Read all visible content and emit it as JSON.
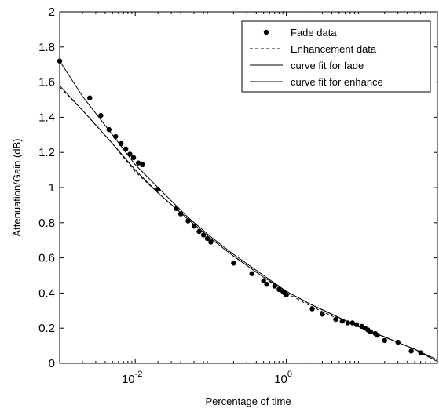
{
  "chart_data": {
    "type": "line",
    "xscale": "log",
    "xlim": [
      0.001,
      100
    ],
    "ylim": [
      0,
      2
    ],
    "xlabel": "Percentage of time",
    "ylabel": "Attenuation/Gain (dB)",
    "xticks": [
      {
        "value": 0.01,
        "base": "10",
        "exp": "-2"
      },
      {
        "value": 1,
        "base": "10",
        "exp": "0"
      }
    ],
    "yticks": [
      0,
      0.2,
      0.4,
      0.6,
      0.8,
      1,
      1.2,
      1.4,
      1.6,
      1.8,
      2
    ],
    "ytick_labels": [
      "0",
      "0.2",
      "0.4",
      "0.6",
      "0.8",
      "1",
      "1.2",
      "1.4",
      "1.6",
      "1.8",
      "2"
    ],
    "grid": false,
    "legend_position": "top-right",
    "series": [
      {
        "name": "Fade data",
        "style": "markers",
        "x": [
          0.001,
          0.0025,
          0.0035,
          0.0045,
          0.0055,
          0.0065,
          0.0075,
          0.0085,
          0.0095,
          0.011,
          0.0125,
          0.02,
          0.035,
          0.04,
          0.05,
          0.06,
          0.07,
          0.08,
          0.09,
          0.1,
          0.2,
          0.35,
          0.5,
          0.55,
          0.7,
          0.8,
          0.9,
          0.95,
          1.0,
          2.2,
          3.0,
          4.5,
          5.5,
          6.5,
          7.5,
          8.5,
          10,
          11,
          12,
          13,
          15,
          16,
          20,
          30,
          45,
          60
        ],
        "y": [
          1.72,
          1.51,
          1.41,
          1.33,
          1.29,
          1.25,
          1.22,
          1.19,
          1.17,
          1.14,
          1.13,
          0.99,
          0.88,
          0.85,
          0.81,
          0.78,
          0.75,
          0.73,
          0.71,
          0.69,
          0.57,
          0.51,
          0.47,
          0.45,
          0.44,
          0.42,
          0.41,
          0.4,
          0.39,
          0.31,
          0.28,
          0.25,
          0.24,
          0.23,
          0.23,
          0.22,
          0.21,
          0.2,
          0.19,
          0.18,
          0.17,
          0.16,
          0.13,
          0.12,
          0.07,
          0.06
        ]
      },
      {
        "name": "Enhancement data",
        "style": "dashed",
        "x": [
          0.001,
          0.002,
          0.005,
          0.01,
          0.02,
          0.05,
          0.1,
          0.2,
          0.5,
          1,
          2,
          5,
          10,
          20,
          50,
          100
        ],
        "y": [
          1.57,
          1.44,
          1.25,
          1.09,
          0.97,
          0.82,
          0.71,
          0.61,
          0.49,
          0.4,
          0.33,
          0.25,
          0.2,
          0.15,
          0.08,
          0.01
        ]
      },
      {
        "name": "curve fit for fade",
        "style": "solid",
        "x": [
          0.001,
          0.002,
          0.005,
          0.01,
          0.02,
          0.05,
          0.1,
          0.2,
          0.5,
          1,
          2,
          5,
          10,
          20,
          50,
          100
        ],
        "y": [
          1.72,
          1.52,
          1.3,
          1.13,
          1.0,
          0.83,
          0.72,
          0.62,
          0.5,
          0.41,
          0.34,
          0.26,
          0.2,
          0.15,
          0.08,
          0.02
        ]
      },
      {
        "name": "curve fit for enhance",
        "style": "solid",
        "x": [
          0.001,
          0.002,
          0.005,
          0.01,
          0.02,
          0.05,
          0.1,
          0.2,
          0.5,
          1,
          2,
          5,
          10,
          20,
          50,
          100
        ],
        "y": [
          1.58,
          1.44,
          1.25,
          1.1,
          0.97,
          0.82,
          0.71,
          0.61,
          0.49,
          0.41,
          0.34,
          0.26,
          0.2,
          0.15,
          0.08,
          0.01
        ]
      }
    ]
  }
}
